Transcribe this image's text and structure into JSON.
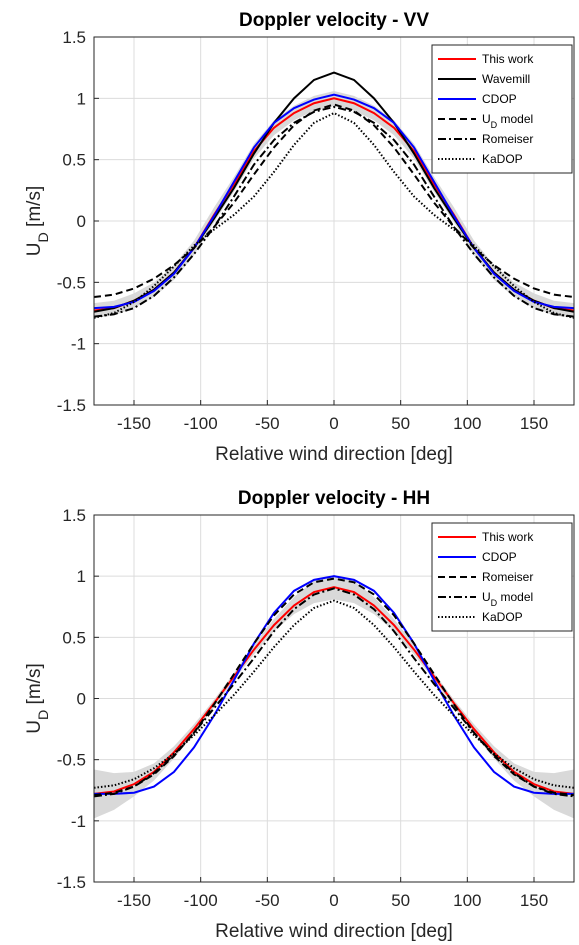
{
  "chart_data": [
    {
      "type": "line",
      "title": "Doppler velocity - VV",
      "xlabel": "Relative wind direction [deg]",
      "ylabel": "U_D [m/s]",
      "xlim": [
        -180,
        180
      ],
      "ylim": [
        -1.5,
        1.5
      ],
      "xticks": [
        -150,
        -100,
        -50,
        0,
        50,
        100,
        150
      ],
      "yticks": [
        -1.5,
        -1,
        -0.5,
        0,
        0.5,
        1,
        1.5
      ],
      "grid": true,
      "legend": "upper right",
      "x": [
        -180,
        -165,
        -150,
        -135,
        -120,
        -105,
        -90,
        -75,
        -60,
        -45,
        -30,
        -15,
        0,
        15,
        30,
        45,
        60,
        75,
        90,
        105,
        120,
        135,
        150,
        165,
        180
      ],
      "band": {
        "color": "#d9d9d9",
        "upper": [
          -0.67,
          -0.65,
          -0.59,
          -0.5,
          -0.36,
          -0.16,
          0.11,
          0.36,
          0.63,
          0.82,
          0.94,
          1.02,
          1.06,
          1.02,
          0.94,
          0.82,
          0.63,
          0.36,
          0.11,
          -0.16,
          -0.36,
          -0.5,
          -0.59,
          -0.65,
          -0.67
        ],
        "lower": [
          -0.79,
          -0.77,
          -0.71,
          -0.62,
          -0.48,
          -0.28,
          -0.01,
          0.24,
          0.51,
          0.7,
          0.82,
          0.9,
          0.94,
          0.9,
          0.82,
          0.7,
          0.51,
          0.24,
          -0.01,
          -0.28,
          -0.48,
          -0.62,
          -0.71,
          -0.77,
          -0.79
        ]
      },
      "series": [
        {
          "name": "This work",
          "color": "#ff0000",
          "linestyle": "solid",
          "values": [
            -0.73,
            -0.71,
            -0.65,
            -0.56,
            -0.42,
            -0.22,
            0.05,
            0.3,
            0.57,
            0.76,
            0.88,
            0.96,
            1.0,
            0.96,
            0.88,
            0.76,
            0.57,
            0.3,
            0.05,
            -0.22,
            -0.42,
            -0.56,
            -0.65,
            -0.71,
            -0.73
          ]
        },
        {
          "name": "Wavemill",
          "color": "#000000",
          "linestyle": "solid",
          "values": [
            -0.74,
            -0.71,
            -0.65,
            -0.56,
            -0.42,
            -0.22,
            0.02,
            0.27,
            0.55,
            0.8,
            1.0,
            1.15,
            1.21,
            1.15,
            1.0,
            0.8,
            0.55,
            0.27,
            0.02,
            -0.22,
            -0.42,
            -0.56,
            -0.65,
            -0.71,
            -0.74
          ]
        },
        {
          "name": "CDOP",
          "color": "#0000ff",
          "linestyle": "solid",
          "values": [
            -0.71,
            -0.7,
            -0.66,
            -0.57,
            -0.43,
            -0.22,
            0.04,
            0.32,
            0.6,
            0.8,
            0.92,
            0.99,
            1.03,
            0.99,
            0.92,
            0.8,
            0.6,
            0.32,
            0.04,
            -0.22,
            -0.43,
            -0.57,
            -0.66,
            -0.7,
            -0.71
          ]
        },
        {
          "name": "U_D model",
          "color": "#000000",
          "linestyle": "dashed",
          "values": [
            -0.62,
            -0.6,
            -0.55,
            -0.47,
            -0.36,
            -0.22,
            -0.05,
            0.15,
            0.38,
            0.6,
            0.78,
            0.9,
            0.95,
            0.9,
            0.78,
            0.6,
            0.38,
            0.15,
            -0.05,
            -0.22,
            -0.36,
            -0.47,
            -0.55,
            -0.6,
            -0.62
          ]
        },
        {
          "name": "Romeiser",
          "color": "#000000",
          "linestyle": "dashdot",
          "values": [
            -0.78,
            -0.76,
            -0.71,
            -0.61,
            -0.46,
            -0.27,
            -0.05,
            0.2,
            0.46,
            0.66,
            0.8,
            0.89,
            0.93,
            0.89,
            0.8,
            0.66,
            0.46,
            0.2,
            -0.05,
            -0.27,
            -0.46,
            -0.61,
            -0.71,
            -0.76,
            -0.78
          ]
        },
        {
          "name": "KaDOP",
          "color": "#000000",
          "linestyle": "dotted",
          "values": [
            -0.79,
            -0.75,
            -0.66,
            -0.53,
            -0.37,
            -0.2,
            -0.07,
            0.05,
            0.2,
            0.4,
            0.62,
            0.8,
            0.88,
            0.8,
            0.62,
            0.4,
            0.2,
            0.05,
            -0.07,
            -0.2,
            -0.37,
            -0.53,
            -0.66,
            -0.75,
            -0.79
          ]
        }
      ]
    },
    {
      "type": "line",
      "title": "Doppler velocity - HH",
      "xlabel": "Relative wind direction [deg]",
      "ylabel": "U_D [m/s]",
      "xlim": [
        -180,
        180
      ],
      "ylim": [
        -1.5,
        1.5
      ],
      "xticks": [
        -150,
        -100,
        -50,
        0,
        50,
        100,
        150
      ],
      "yticks": [
        -1.5,
        -1,
        -0.5,
        0,
        0.5,
        1,
        1.5
      ],
      "grid": true,
      "legend": "upper right",
      "x": [
        -180,
        -165,
        -150,
        -135,
        -120,
        -105,
        -90,
        -75,
        -60,
        -45,
        -30,
        -15,
        0,
        15,
        30,
        45,
        60,
        75,
        90,
        105,
        120,
        135,
        150,
        165,
        180
      ],
      "band": {
        "color": "#d9d9d9",
        "upper": [
          -0.58,
          -0.61,
          -0.6,
          -0.53,
          -0.39,
          -0.21,
          -0.01,
          0.21,
          0.44,
          0.65,
          0.83,
          0.96,
          1.01,
          0.96,
          0.83,
          0.65,
          0.44,
          0.21,
          -0.01,
          -0.21,
          -0.39,
          -0.53,
          -0.6,
          -0.61,
          -0.58
        ],
        "lower": [
          -0.98,
          -0.91,
          -0.8,
          -0.67,
          -0.49,
          -0.29,
          -0.07,
          0.15,
          0.36,
          0.55,
          0.69,
          0.78,
          0.81,
          0.78,
          0.69,
          0.55,
          0.36,
          0.15,
          -0.07,
          -0.29,
          -0.49,
          -0.67,
          -0.8,
          -0.91,
          -0.98
        ]
      },
      "series": [
        {
          "name": "This work",
          "color": "#ff0000",
          "linestyle": "solid",
          "values": [
            -0.78,
            -0.76,
            -0.7,
            -0.6,
            -0.44,
            -0.25,
            -0.04,
            0.18,
            0.4,
            0.6,
            0.76,
            0.87,
            0.91,
            0.87,
            0.76,
            0.6,
            0.4,
            0.18,
            -0.04,
            -0.25,
            -0.44,
            -0.6,
            -0.7,
            -0.76,
            -0.78
          ]
        },
        {
          "name": "CDOP",
          "color": "#0000ff",
          "linestyle": "solid",
          "values": [
            -0.78,
            -0.78,
            -0.77,
            -0.72,
            -0.6,
            -0.4,
            -0.14,
            0.15,
            0.45,
            0.7,
            0.88,
            0.97,
            1.0,
            0.97,
            0.88,
            0.7,
            0.45,
            0.15,
            -0.14,
            -0.4,
            -0.6,
            -0.72,
            -0.77,
            -0.78,
            -0.78
          ]
        },
        {
          "name": "Romeiser",
          "color": "#000000",
          "linestyle": "dashed",
          "values": [
            -0.79,
            -0.77,
            -0.72,
            -0.62,
            -0.47,
            -0.28,
            -0.05,
            0.2,
            0.45,
            0.68,
            0.85,
            0.95,
            0.98,
            0.95,
            0.85,
            0.68,
            0.45,
            0.2,
            -0.05,
            -0.28,
            -0.47,
            -0.62,
            -0.72,
            -0.77,
            -0.79
          ]
        },
        {
          "name": "U_D model",
          "color": "#000000",
          "linestyle": "dashdot",
          "values": [
            -0.8,
            -0.78,
            -0.72,
            -0.61,
            -0.46,
            -0.28,
            -0.08,
            0.12,
            0.33,
            0.55,
            0.73,
            0.85,
            0.9,
            0.85,
            0.73,
            0.55,
            0.33,
            0.12,
            -0.08,
            -0.28,
            -0.46,
            -0.61,
            -0.72,
            -0.78,
            -0.8
          ]
        },
        {
          "name": "KaDOP",
          "color": "#000000",
          "linestyle": "dotted",
          "values": [
            -0.73,
            -0.71,
            -0.66,
            -0.57,
            -0.45,
            -0.3,
            -0.14,
            0.03,
            0.22,
            0.42,
            0.6,
            0.74,
            0.8,
            0.74,
            0.6,
            0.42,
            0.22,
            0.03,
            -0.14,
            -0.3,
            -0.45,
            -0.57,
            -0.66,
            -0.71,
            -0.73
          ]
        }
      ]
    }
  ]
}
